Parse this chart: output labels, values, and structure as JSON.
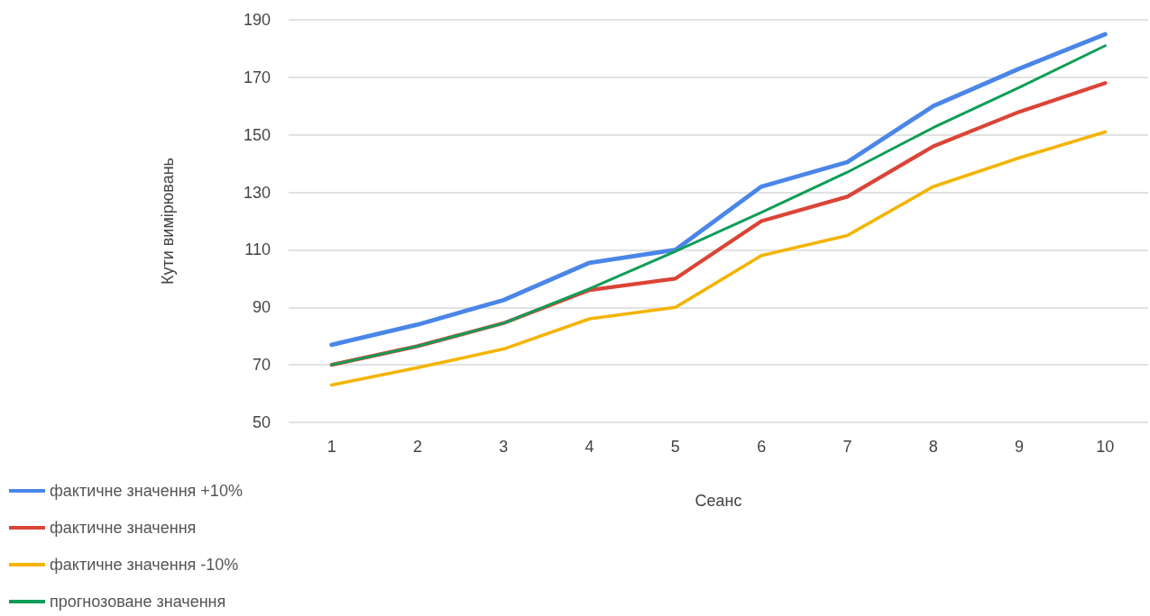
{
  "chart_data": {
    "type": "line",
    "xlabel": "Сеанс",
    "ylabel": "Кути вимірювань",
    "categories": [
      "1",
      "2",
      "3",
      "4",
      "5",
      "6",
      "7",
      "8",
      "9",
      "10"
    ],
    "series": [
      {
        "name": "фактичне значення +10%",
        "color": "#4a86e8",
        "values": [
          77,
          84,
          92.5,
          105.5,
          110,
          132,
          140.5,
          160,
          173,
          185
        ]
      },
      {
        "name": "фактичне значення",
        "color": "#db4437",
        "values": [
          70,
          76.5,
          84.5,
          96,
          100,
          120,
          128.5,
          146,
          158,
          168
        ]
      },
      {
        "name": "фактичне значення -10%",
        "color": "#f4b400",
        "values": [
          63,
          69,
          75.5,
          86,
          90,
          108,
          115,
          132,
          142,
          151
        ]
      },
      {
        "name": "прогнозоване значення",
        "color": "#0f9d58",
        "values": [
          70,
          76.5,
          84.5,
          96.5,
          109.5,
          123,
          137,
          152.5,
          166.5,
          181
        ]
      }
    ],
    "ylim": [
      50,
      190
    ],
    "yticks": [
      50,
      70,
      90,
      110,
      130,
      150,
      170,
      190
    ],
    "grid": "y",
    "legend": "bottom left",
    "marker": "none",
    "line_style": "solid"
  }
}
